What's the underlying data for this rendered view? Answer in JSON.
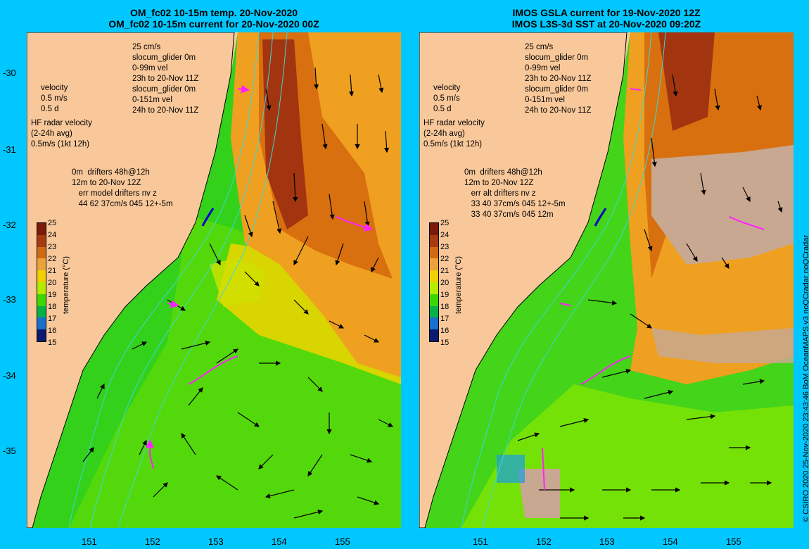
{
  "left": {
    "title1": "OM_fc02 10-15m temp. 20-Nov-2020",
    "title2": "OM_fc02 10-15m current for 20-Nov-2020 00Z",
    "legend": {
      "speed": "25 cm/s",
      "glider1": "slocum_glider 0m",
      "vel1": "0-99m vel",
      "time1": "23h to 20-Nov 11Z",
      "glider2": "slocum_glider 0m",
      "vel2": "0-151m vel",
      "time2": "24h to 20-Nov 11Z"
    },
    "velocity": "velocity",
    "vel_scale": "0.5 m/s",
    "vel_days": "0.5 d",
    "hf1": "HF radar velocity",
    "hf2": "(2-24h avg)",
    "hf3": "0.5m/s (1kt 12h)",
    "drift1": "0m",
    "drift1b": "drifters 48h@12h",
    "drift2": "12m",
    "drift2b": "to 20-Nov 12Z",
    "err1": "err model drifters nv z",
    "err2": "44 62 37cm/s 045 12+-5m"
  },
  "right": {
    "title1": "IMOS GSLA current for 19-Nov-2020 12Z",
    "title2": "IMOS L3S-3d SST at 20-Nov-2020 09:20Z",
    "legend": {
      "speed": "25 cm/s",
      "glider1": "slocum_glider 0m",
      "vel1": "0-99m vel",
      "time1": "23h to 20-Nov 11Z",
      "glider2": "slocum_glider 0m",
      "vel2": "0-151m vel",
      "time2": "24h to 20-Nov 11Z"
    },
    "velocity": "velocity",
    "vel_scale": "0.5 m/s",
    "vel_days": "0.5 d",
    "hf1": "HF radar velocity",
    "hf2": "(2-24h avg)",
    "hf3": "0.5m/s (1kt 12h)",
    "drift1": "0m",
    "drift1b": "drifters 48h@12h",
    "drift2": "12m",
    "drift2b": "to 20-Nov 12Z",
    "err1": "err alt drifters nv z",
    "err2": "33 40 37cm/s 045 12+-5m",
    "err3": "33 40 37cm/s 045 12m"
  },
  "colorbar": {
    "title": "temperature (°C)",
    "labels": [
      "25",
      "24",
      "23",
      "22",
      "21",
      "20",
      "19",
      "18",
      "17",
      "16",
      "15"
    ],
    "colors": [
      "#7a1a0a",
      "#a83a10",
      "#d26a14",
      "#eba23a",
      "#f0d000",
      "#b4ec00",
      "#3cd600",
      "#08b048",
      "#1a6ecc",
      "#1a3cb8",
      "#0a1a70"
    ]
  },
  "lat_labels": [
    "-30",
    "-31",
    "-32",
    "-33",
    "-34",
    "-35"
  ],
  "lon_labels": [
    "151",
    "152",
    "153",
    "154",
    "155"
  ],
  "credit": "© CSIRO 2020   25-Nov-2020 23:43:46 BoM OceanMAPS v3 noQCradar noQCradar",
  "colors": {
    "background": "#00c8ff",
    "land": "#f9c89a",
    "glider": "#0000cc",
    "drifter": "#ff22ff",
    "isobath": "#3ad7d7",
    "missing": "#c8a890"
  }
}
